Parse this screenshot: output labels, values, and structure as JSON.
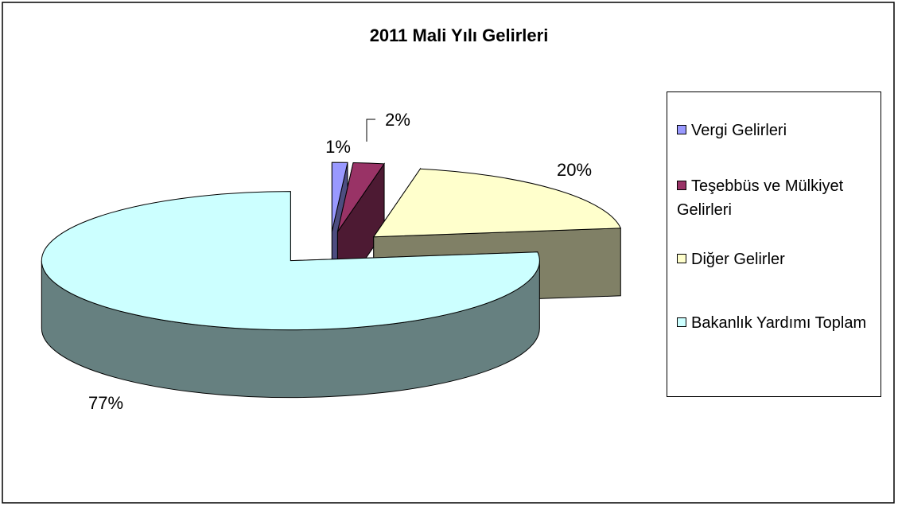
{
  "chart_data": {
    "type": "pie3d",
    "title": "2011 Mali Yılı Gelirleri",
    "categories": [
      "Vergi Gelirleri",
      "Teşebbüs ve Mülkiyet Gelirleri",
      "Diğer Gelirler",
      "Bakanlık Yardımı Toplam"
    ],
    "values": [
      1,
      2,
      20,
      77
    ],
    "value_labels": [
      "1%",
      "2%",
      "20%",
      "77%"
    ],
    "colors": [
      "#9999ff",
      "#993366",
      "#ffffcc",
      "#ccffff"
    ],
    "legend": "right"
  }
}
